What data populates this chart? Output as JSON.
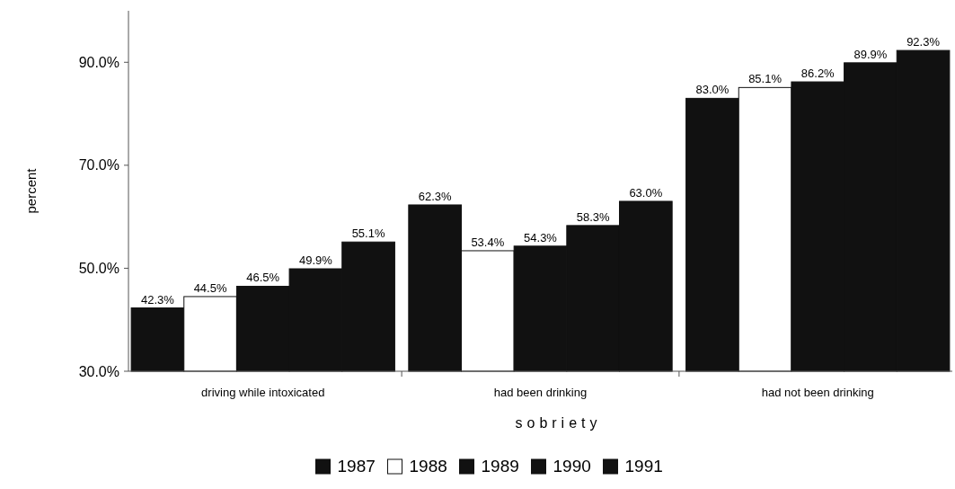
{
  "chart_data": {
    "type": "bar",
    "xlabel": "sobriety",
    "ylabel": "percent",
    "categories": [
      "driving while intoxicated",
      "had been drinking",
      "had not been drinking"
    ],
    "series": [
      {
        "name": "1987",
        "color": "#111111",
        "values": [
          42.3,
          62.3,
          83.0
        ],
        "value_labels": [
          "42.3%",
          "62.3%",
          "83.0%"
        ]
      },
      {
        "name": "1988",
        "color": "#ffffff",
        "values": [
          44.5,
          53.4,
          85.1
        ],
        "value_labels": [
          "44.5%",
          "53.4%",
          "85.1%"
        ]
      },
      {
        "name": "1989",
        "color": "#111111",
        "values": [
          46.5,
          54.3,
          86.2
        ],
        "value_labels": [
          "46.5%",
          "54.3%",
          "86.2%"
        ]
      },
      {
        "name": "1990",
        "color": "#111111",
        "values": [
          49.9,
          58.3,
          89.9
        ],
        "value_labels": [
          "49.9%",
          "58.3%",
          "89.9%"
        ]
      },
      {
        "name": "1991",
        "color": "#111111",
        "values": [
          55.1,
          63.0,
          92.3
        ],
        "value_labels": [
          "55.1%",
          "63.0%",
          "92.3%"
        ]
      }
    ],
    "ylim": [
      30,
      100
    ],
    "yticks": [
      {
        "value": 30,
        "label": "30.0%"
      },
      {
        "value": 50,
        "label": "50.0%"
      },
      {
        "value": 70,
        "label": "70.0%"
      },
      {
        "value": 90,
        "label": "90.0%"
      }
    ],
    "grid": false,
    "legend": "bottom"
  }
}
